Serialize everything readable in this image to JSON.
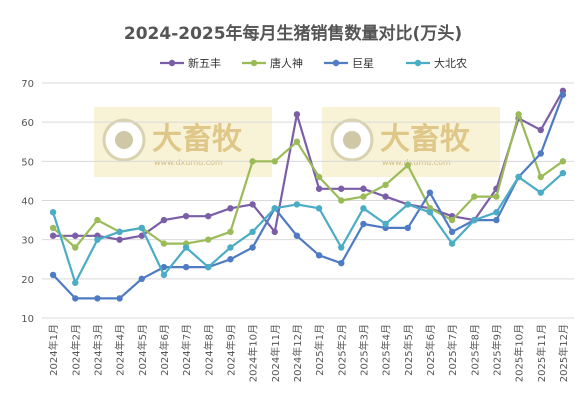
{
  "chart_data": {
    "type": "line",
    "title": "2024-2025年每月生猪销售数量对比(万头)",
    "categories": [
      "2024年1月",
      "2024年2月",
      "2024年3月",
      "2024年4月",
      "2024年5月",
      "2024年6月",
      "2024年7月",
      "2024年8月",
      "2024年9月",
      "2024年10月",
      "2024年11月",
      "2024年12月",
      "2025年1月",
      "2025年2月",
      "2025年3月",
      "2025年4月",
      "2025年5月",
      "2025年6月",
      "2025年7月",
      "2025年8月",
      "2025年9月",
      "2025年10月",
      "2025年11月",
      "2025年12月"
    ],
    "ylim": [
      10,
      70
    ],
    "yticks": [
      10,
      20,
      30,
      40,
      50,
      60,
      70
    ],
    "grid": "horizontal",
    "legend_position": "top",
    "series": [
      {
        "name": "新五丰",
        "color": "#7b5ea7",
        "values": [
          31,
          31,
          31,
          30,
          31,
          35,
          36,
          36,
          38,
          39,
          32,
          62,
          43,
          43,
          43,
          41,
          39,
          38,
          36,
          35,
          43,
          61,
          58,
          68
        ]
      },
      {
        "name": "唐人神",
        "color": "#9bbb59",
        "values": [
          33,
          28,
          35,
          32,
          33,
          29,
          29,
          30,
          32,
          50,
          50,
          55,
          46,
          40,
          41,
          44,
          49,
          38,
          35,
          41,
          41,
          62,
          46,
          50
        ]
      },
      {
        "name": "巨星",
        "color": "#4f7bc3",
        "values": [
          21,
          15,
          15,
          15,
          20,
          23,
          23,
          23,
          25,
          28,
          38,
          31,
          26,
          24,
          34,
          33,
          33,
          42,
          32,
          35,
          35,
          46,
          52,
          67
        ]
      },
      {
        "name": "大北农",
        "color": "#4bacc6",
        "values": [
          37,
          19,
          30,
          32,
          33,
          21,
          28,
          23,
          28,
          32,
          38,
          39,
          38,
          28,
          38,
          34,
          39,
          37,
          29,
          35,
          37,
          46,
          42,
          47
        ]
      }
    ]
  },
  "watermark": {
    "logo_text": "大畜牧",
    "url_text": "www.dxumu.com"
  }
}
